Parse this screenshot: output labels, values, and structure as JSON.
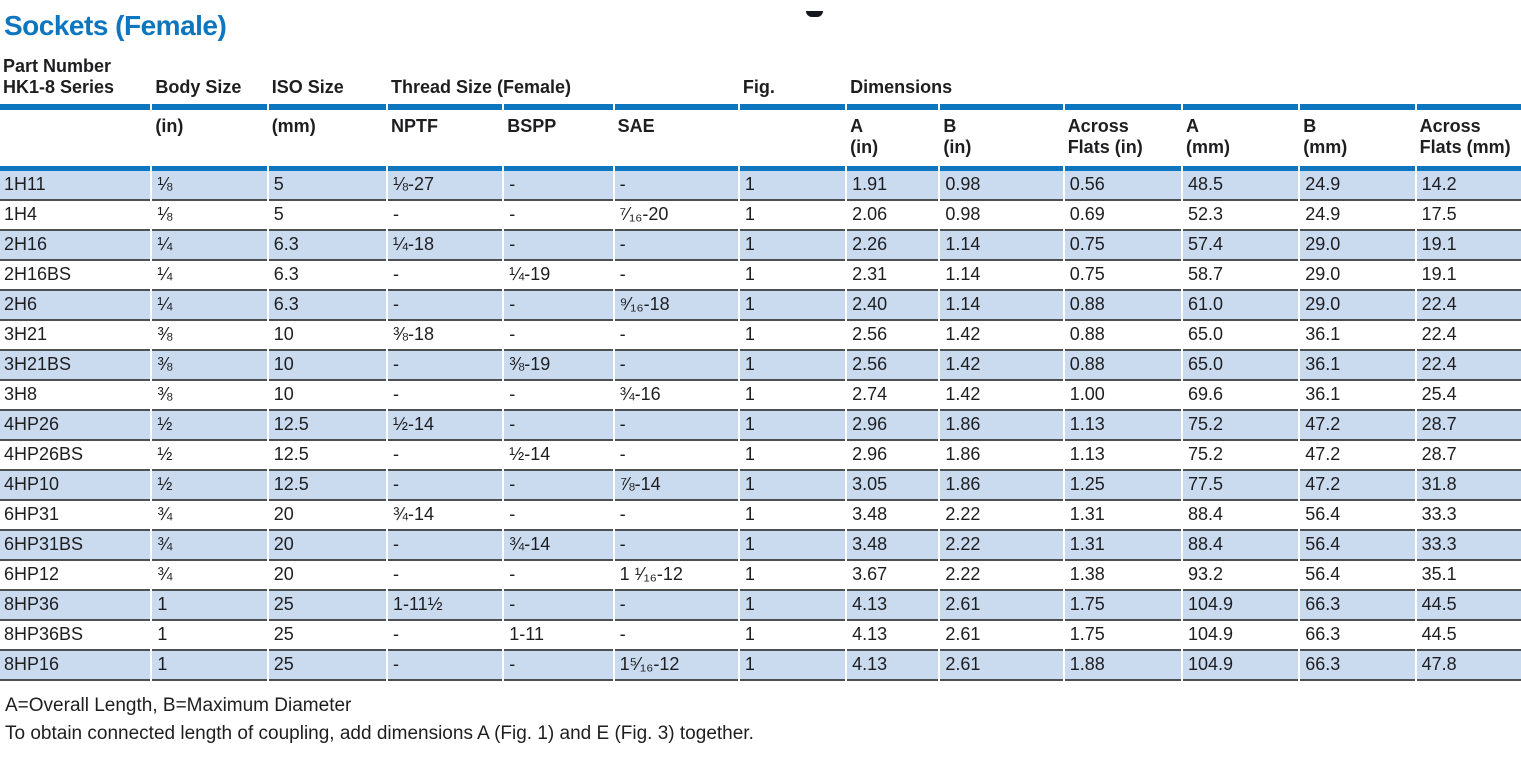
{
  "page": {
    "title": "Sockets (Female)",
    "footnote_line1": "A=Overall Length, B=Maximum Diameter",
    "footnote_line2": "To obtain connected length of coupling, add dimensions A (Fig. 1) and E (Fig. 3) together."
  },
  "colors": {
    "accent_blue": "#0d76bf",
    "row_fill_blue": "#cadaef",
    "row_separator_gray": "#4e4f53",
    "text_black": "#1e1e20"
  },
  "table": {
    "header": {
      "part_number_line1": "Part Number",
      "part_number_line2": "HK1-8 Series",
      "body_size": "Body Size",
      "iso_size": "ISO Size",
      "thread_size": "Thread Size (Female)",
      "fig": "Fig.",
      "dimensions": "Dimensions"
    },
    "subheader": {
      "body_size_unit": "(in)",
      "iso_size_unit": "(mm)",
      "nptf": "NPTF",
      "bspp": "BSPP",
      "sae": "SAE",
      "a_in": [
        "A",
        "(in)"
      ],
      "b_in": [
        "B",
        "(in)"
      ],
      "af_in": [
        "Across",
        "Flats (in)"
      ],
      "a_mm": [
        "A",
        "(mm)"
      ],
      "b_mm": [
        "B",
        "(mm)"
      ],
      "af_mm": [
        "Across",
        "Flats (mm)"
      ]
    },
    "columns": [
      "Part Number HK1-8 Series",
      "Body Size (in)",
      "ISO Size (mm)",
      "NPTF",
      "BSPP",
      "SAE",
      "Fig.",
      "A (in)",
      "B (in)",
      "Across Flats (in)",
      "A (mm)",
      "B (mm)",
      "Across Flats (mm)"
    ],
    "rows": [
      [
        "1H11",
        "⅛",
        "5",
        "⅛-27",
        "-",
        "-",
        "1",
        "1.91",
        "0.98",
        "0.56",
        "48.5",
        "24.9",
        "14.2"
      ],
      [
        "1H4",
        "⅛",
        "5",
        "-",
        "-",
        "⁷⁄₁₆-20",
        "1",
        "2.06",
        "0.98",
        "0.69",
        "52.3",
        "24.9",
        "17.5"
      ],
      [
        "2H16",
        "¼",
        "6.3",
        "¼-18",
        "-",
        "-",
        "1",
        "2.26",
        "1.14",
        "0.75",
        "57.4",
        "29.0",
        "19.1"
      ],
      [
        "2H16BS",
        "¼",
        "6.3",
        "-",
        "¼-19",
        "-",
        "1",
        "2.31",
        "1.14",
        "0.75",
        "58.7",
        "29.0",
        "19.1"
      ],
      [
        "2H6",
        "¼",
        "6.3",
        "-",
        "-",
        "⁹⁄₁₆-18",
        "1",
        "2.40",
        "1.14",
        "0.88",
        "61.0",
        "29.0",
        "22.4"
      ],
      [
        "3H21",
        "⅜",
        "10",
        "⅜-18",
        "-",
        "-",
        "1",
        "2.56",
        "1.42",
        "0.88",
        "65.0",
        "36.1",
        "22.4"
      ],
      [
        "3H21BS",
        "⅜",
        "10",
        "-",
        "⅜-19",
        "-",
        "1",
        "2.56",
        "1.42",
        "0.88",
        "65.0",
        "36.1",
        "22.4"
      ],
      [
        "3H8",
        "⅜",
        "10",
        "-",
        "-",
        "¾-16",
        "1",
        "2.74",
        "1.42",
        "1.00",
        "69.6",
        "36.1",
        "25.4"
      ],
      [
        "4HP26",
        "½",
        "12.5",
        "½-14",
        "-",
        "-",
        "1",
        "2.96",
        "1.86",
        "1.13",
        "75.2",
        "47.2",
        "28.7"
      ],
      [
        "4HP26BS",
        "½",
        "12.5",
        "-",
        "½-14",
        "-",
        "1",
        "2.96",
        "1.86",
        "1.13",
        "75.2",
        "47.2",
        "28.7"
      ],
      [
        "4HP10",
        "½",
        "12.5",
        "-",
        "-",
        "⅞-14",
        "1",
        "3.05",
        "1.86",
        "1.25",
        "77.5",
        "47.2",
        "31.8"
      ],
      [
        "6HP31",
        "¾",
        "20",
        "¾-14",
        "-",
        "-",
        "1",
        "3.48",
        "2.22",
        "1.31",
        "88.4",
        "56.4",
        "33.3"
      ],
      [
        "6HP31BS",
        "¾",
        "20",
        "-",
        "¾-14",
        "-",
        "1",
        "3.48",
        "2.22",
        "1.31",
        "88.4",
        "56.4",
        "33.3"
      ],
      [
        "6HP12",
        "¾",
        "20",
        "-",
        "-",
        "1 ¹⁄₁₆-12",
        "1",
        "3.67",
        "2.22",
        "1.38",
        "93.2",
        "56.4",
        "35.1"
      ],
      [
        "8HP36",
        "1",
        "25",
        "1-11½",
        "-",
        "-",
        "1",
        "4.13",
        "2.61",
        "1.75",
        "104.9",
        "66.3",
        "44.5"
      ],
      [
        "8HP36BS",
        "1",
        "25",
        "-",
        "1-11",
        "-",
        "1",
        "4.13",
        "2.61",
        "1.75",
        "104.9",
        "66.3",
        "44.5"
      ],
      [
        "8HP16",
        "1",
        "25",
        "-",
        "-",
        "1⁵⁄₁₆-12",
        "1",
        "4.13",
        "2.61",
        "1.88",
        "104.9",
        "66.3",
        "47.8"
      ]
    ]
  }
}
